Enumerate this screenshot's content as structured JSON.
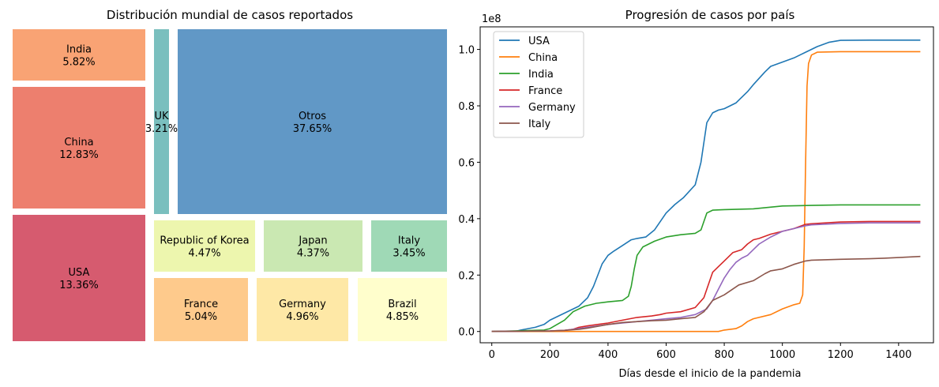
{
  "chart_data": [
    {
      "type": "treemap",
      "title": "Distribución mundial de casos reportados",
      "items": [
        {
          "name": "India",
          "percent": "5.82%",
          "color": "#f9a374"
        },
        {
          "name": "China",
          "percent": "12.83%",
          "color": "#ed7f6e"
        },
        {
          "name": "USA",
          "percent": "13.36%",
          "color": "#d65b6f"
        },
        {
          "name": "UK",
          "percent": "3.21%",
          "color": "#7abfbe"
        },
        {
          "name": "Otros",
          "percent": "37.65%",
          "color": "#6198c6"
        },
        {
          "name": "Republic of Korea",
          "percent": "4.47%",
          "color": "#edf6ae"
        },
        {
          "name": "Japan",
          "percent": "4.37%",
          "color": "#cae8b2"
        },
        {
          "name": "Italy",
          "percent": "3.45%",
          "color": "#9fd9b6"
        },
        {
          "name": "France",
          "percent": "5.04%",
          "color": "#feca8c"
        },
        {
          "name": "Germany",
          "percent": "4.96%",
          "color": "#fee8a6"
        },
        {
          "name": "Brazil",
          "percent": "4.85%",
          "color": "#fffecc"
        }
      ]
    },
    {
      "type": "line",
      "title": "Progresión de casos por país",
      "xlabel": "Días desde el inicio de la pandemia",
      "ylabel": "",
      "y_scale_note": "1e8",
      "xlim": [
        -40,
        1520
      ],
      "ylim": [
        -0.04,
        1.08
      ],
      "xticks": [
        0,
        200,
        400,
        600,
        800,
        1000,
        1200,
        1400
      ],
      "yticks": [
        0.0,
        0.2,
        0.4,
        0.6,
        0.8,
        1.0
      ],
      "legend_position": "top-left",
      "grid": false,
      "series": [
        {
          "name": "USA",
          "color": "#1f77b4",
          "x": [
            0,
            80,
            100,
            150,
            180,
            200,
            250,
            300,
            330,
            350,
            380,
            400,
            420,
            450,
            480,
            500,
            530,
            560,
            600,
            630,
            660,
            700,
            720,
            740,
            760,
            780,
            800,
            840,
            880,
            900,
            940,
            960,
            1000,
            1040,
            1080,
            1120,
            1160,
            1200,
            1300,
            1400,
            1475
          ],
          "y": [
            0,
            0,
            0.005,
            0.015,
            0.025,
            0.04,
            0.065,
            0.09,
            0.12,
            0.16,
            0.24,
            0.27,
            0.285,
            0.305,
            0.325,
            0.33,
            0.335,
            0.36,
            0.42,
            0.45,
            0.475,
            0.52,
            0.6,
            0.74,
            0.775,
            0.785,
            0.79,
            0.81,
            0.85,
            0.875,
            0.92,
            0.94,
            0.955,
            0.97,
            0.99,
            1.01,
            1.025,
            1.032,
            1.033,
            1.033,
            1.033
          ]
        },
        {
          "name": "China",
          "color": "#ff7f0e",
          "x": [
            0,
            200,
            400,
            600,
            780,
            800,
            840,
            860,
            880,
            900,
            960,
            1000,
            1040,
            1060,
            1070,
            1075,
            1080,
            1085,
            1090,
            1100,
            1120,
            1200,
            1300,
            1400,
            1475
          ],
          "y": [
            0,
            0,
            0,
            0,
            0,
            0.005,
            0.01,
            0.02,
            0.035,
            0.045,
            0.06,
            0.08,
            0.095,
            0.1,
            0.13,
            0.3,
            0.6,
            0.87,
            0.95,
            0.98,
            0.99,
            0.992,
            0.992,
            0.992,
            0.992
          ]
        },
        {
          "name": "India",
          "color": "#2ca02c",
          "x": [
            0,
            180,
            200,
            250,
            280,
            320,
            360,
            400,
            450,
            470,
            480,
            490,
            500,
            520,
            560,
            600,
            650,
            700,
            720,
            740,
            760,
            800,
            900,
            1000,
            1100,
            1200,
            1300,
            1400,
            1475
          ],
          "y": [
            0,
            0.005,
            0.01,
            0.04,
            0.07,
            0.09,
            0.1,
            0.105,
            0.11,
            0.125,
            0.16,
            0.22,
            0.27,
            0.3,
            0.32,
            0.335,
            0.343,
            0.348,
            0.36,
            0.42,
            0.43,
            0.432,
            0.435,
            0.445,
            0.447,
            0.449,
            0.449,
            0.449,
            0.449
          ]
        },
        {
          "name": "France",
          "color": "#d62728",
          "x": [
            0,
            200,
            250,
            280,
            300,
            330,
            400,
            450,
            500,
            550,
            580,
            600,
            650,
            700,
            730,
            750,
            760,
            780,
            800,
            830,
            860,
            880,
            900,
            920,
            960,
            1000,
            1040,
            1080,
            1100,
            1200,
            1300,
            1400,
            1475
          ],
          "y": [
            0,
            0.002,
            0.004,
            0.008,
            0.015,
            0.02,
            0.03,
            0.04,
            0.05,
            0.055,
            0.06,
            0.065,
            0.07,
            0.085,
            0.12,
            0.18,
            0.21,
            0.23,
            0.25,
            0.28,
            0.29,
            0.31,
            0.325,
            0.33,
            0.345,
            0.355,
            0.365,
            0.38,
            0.382,
            0.388,
            0.39,
            0.39,
            0.39
          ]
        },
        {
          "name": "Germany",
          "color": "#9467bd",
          "x": [
            0,
            200,
            250,
            300,
            330,
            400,
            450,
            500,
            550,
            600,
            650,
            700,
            740,
            760,
            780,
            800,
            820,
            840,
            860,
            880,
            900,
            920,
            960,
            1000,
            1040,
            1080,
            1100,
            1200,
            1300,
            1400,
            1475
          ],
          "y": [
            0,
            0.002,
            0.004,
            0.01,
            0.015,
            0.025,
            0.03,
            0.035,
            0.04,
            0.045,
            0.05,
            0.06,
            0.08,
            0.11,
            0.15,
            0.19,
            0.22,
            0.245,
            0.26,
            0.27,
            0.29,
            0.31,
            0.335,
            0.355,
            0.365,
            0.375,
            0.378,
            0.383,
            0.385,
            0.385,
            0.385
          ]
        },
        {
          "name": "Italy",
          "color": "#8c564b",
          "x": [
            0,
            200,
            250,
            300,
            330,
            400,
            450,
            500,
            550,
            600,
            650,
            700,
            730,
            760,
            800,
            850,
            900,
            940,
            960,
            1000,
            1040,
            1080,
            1100,
            1200,
            1300,
            1350,
            1400,
            1475
          ],
          "y": [
            0,
            0.002,
            0.004,
            0.008,
            0.012,
            0.025,
            0.032,
            0.035,
            0.038,
            0.04,
            0.045,
            0.05,
            0.07,
            0.11,
            0.13,
            0.165,
            0.18,
            0.205,
            0.215,
            0.222,
            0.238,
            0.25,
            0.253,
            0.256,
            0.258,
            0.26,
            0.262,
            0.266
          ]
        }
      ]
    }
  ]
}
